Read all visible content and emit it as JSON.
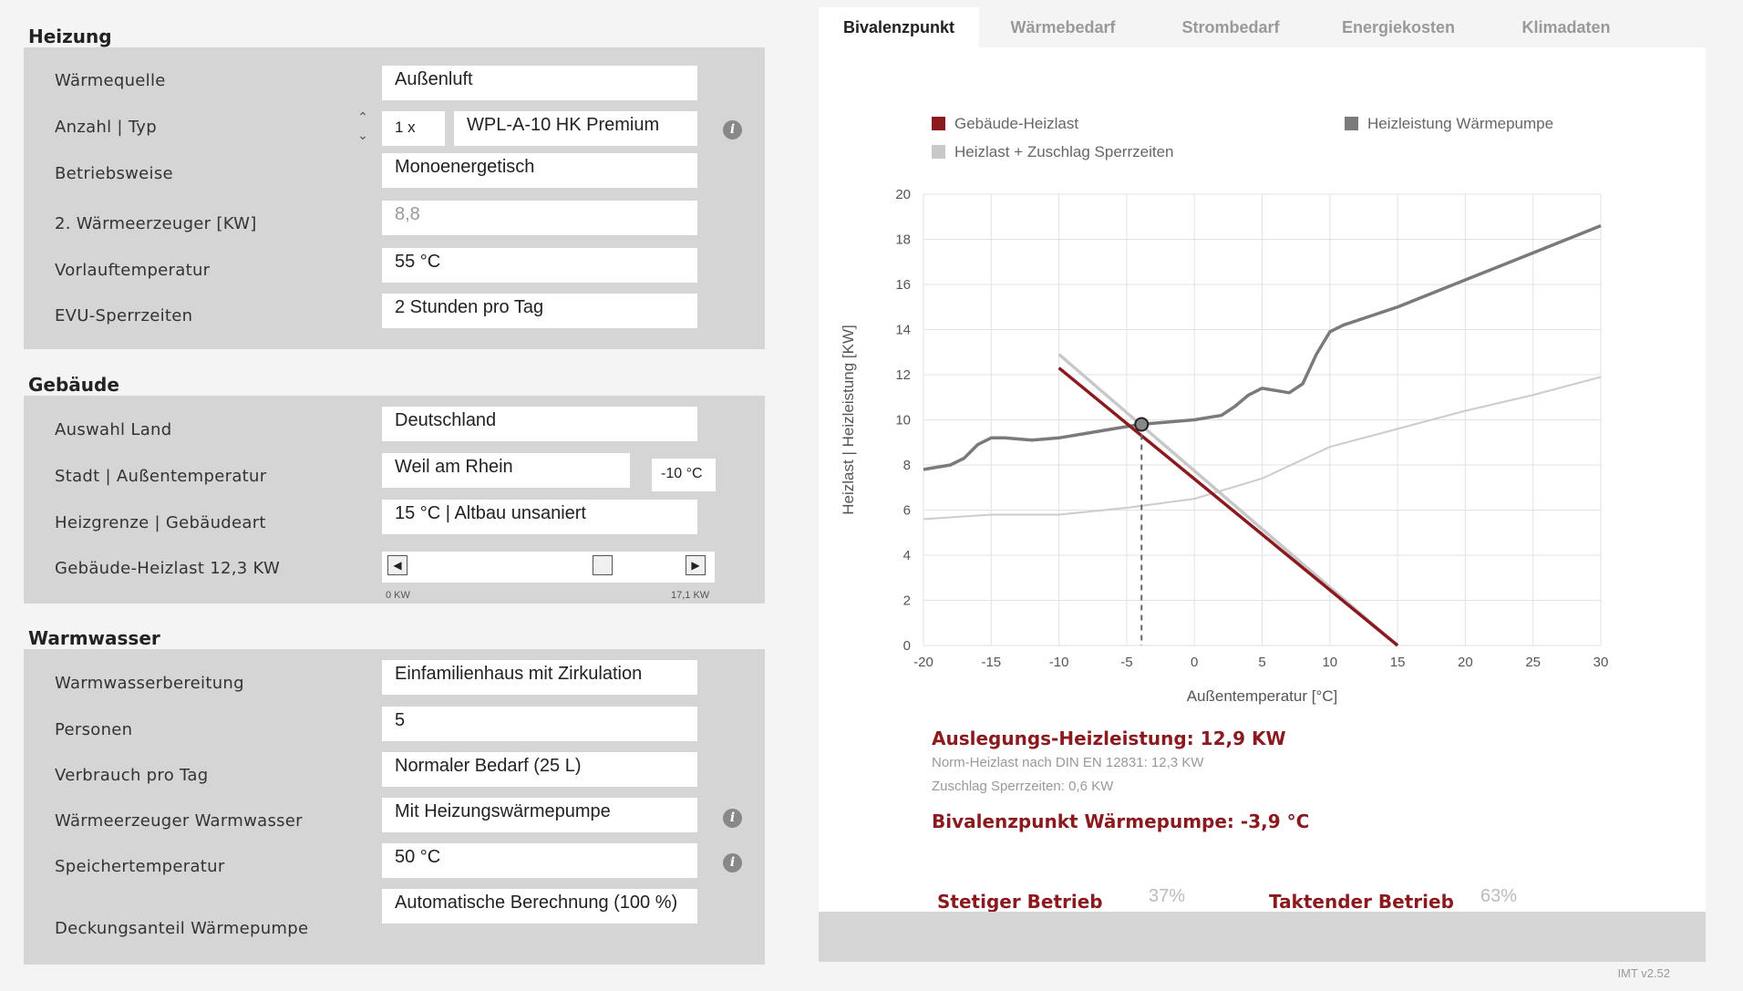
{
  "heizung": {
    "title": "Heizung",
    "rows": [
      {
        "label": "Wärmequelle",
        "value": "Außenluft"
      },
      {
        "label": "Anzahl | Typ",
        "count": "1 x",
        "value": "WPL-A-10 HK Premium"
      },
      {
        "label": "Betriebsweise",
        "value": "Monoenergetisch"
      },
      {
        "label": "2. Wärmeerzeuger [KW]",
        "value": "8,8"
      },
      {
        "label": "Vorlauftemperatur",
        "value": "55 °C"
      },
      {
        "label": "EVU-Sperrzeiten",
        "value": "2 Stunden pro Tag"
      }
    ]
  },
  "gebaeude": {
    "title": "Gebäude",
    "rows": [
      {
        "label": "Auswahl Land",
        "value": "Deutschland"
      },
      {
        "label": "Stadt | Außentemperatur",
        "value": "Weil am Rhein",
        "temp": "-10 °C"
      },
      {
        "label": "Heizgrenze | Gebäudeart",
        "value": "15 °C | Altbau unsaniert"
      },
      {
        "label": "Gebäude-Heizlast 12,3 KW",
        "slider_min": "0 KW",
        "slider_max": "17,1 KW",
        "slider_fraction": 0.72
      }
    ]
  },
  "warmwasser": {
    "title": "Warmwasser",
    "rows": [
      {
        "label": "Warmwasserbereitung",
        "value": "Einfamilienhaus mit Zirkulation"
      },
      {
        "label": "Personen",
        "value": "5"
      },
      {
        "label": "Verbrauch pro Tag",
        "value": "Normaler Bedarf (25 L)"
      },
      {
        "label": "Wärmeerzeuger Warmwasser",
        "value": "Mit Heizungswärmepumpe"
      },
      {
        "label": "Speichertemperatur",
        "value": "50 °C"
      },
      {
        "label": "Deckungsanteil Wärmepumpe",
        "value": "Automatische Berechnung (100 %)"
      }
    ]
  },
  "tabs": [
    "Bivalenzpunkt",
    "Wärmebedarf",
    "Strombedarf",
    "Energiekosten",
    "Klimadaten"
  ],
  "chart_data": {
    "type": "line",
    "xlabel": "Außentemperatur [°C]",
    "ylabel": "Heizlast | Heizleistung [KW]",
    "xlim": [
      -20,
      30
    ],
    "ylim": [
      0,
      20
    ],
    "xticks": [
      "-20",
      "-15",
      "-10",
      "-5",
      "0",
      "5",
      "10",
      "15",
      "20",
      "25",
      "30"
    ],
    "yticks": [
      "0",
      "2",
      "4",
      "6",
      "8",
      "10",
      "12",
      "14",
      "16",
      "18",
      "20"
    ],
    "grid": true,
    "legend_placement": "top",
    "series": [
      {
        "name": "Gebäude-Heizlast",
        "color": "#8b1a1f",
        "x": [
          -10,
          15
        ],
        "y": [
          12.3,
          0
        ]
      },
      {
        "name": "Heizleistung Wärmepumpe",
        "color": "#7a7a7a",
        "x": [
          -20,
          -18,
          -17,
          -16,
          -15,
          -14,
          -12,
          -10,
          -8,
          -6,
          -4,
          -2,
          0,
          2,
          3,
          4,
          5,
          6,
          7,
          8,
          9,
          10,
          11,
          12,
          15,
          20,
          25,
          30
        ],
        "y": [
          7.8,
          8.0,
          8.3,
          8.9,
          9.2,
          9.2,
          9.1,
          9.2,
          9.4,
          9.6,
          9.8,
          9.9,
          10.0,
          10.2,
          10.6,
          11.1,
          11.4,
          11.3,
          11.2,
          11.6,
          12.9,
          13.9,
          14.2,
          14.4,
          15.0,
          16.2,
          17.4,
          18.6
        ]
      },
      {
        "name": "Heizlast + Zuschlag Sperrzeiten",
        "color": "#c8c8c8",
        "x": [
          -10,
          15
        ],
        "y": [
          12.9,
          0
        ]
      },
      {
        "name": "",
        "color": "#cccccc",
        "x": [
          -20,
          -15,
          -10,
          -5,
          0,
          5,
          10,
          15,
          20,
          25,
          30
        ],
        "y": [
          5.6,
          5.8,
          5.8,
          6.1,
          6.5,
          7.4,
          8.8,
          9.6,
          10.4,
          11.1,
          11.9
        ]
      }
    ],
    "bivalence_point": {
      "x": -3.9,
      "y": 9.8
    }
  },
  "results": {
    "auslegung": "Auslegungs-Heizleistung: 12,9 KW",
    "norm": "Norm-Heizlast nach DIN EN 12831: 12,3 KW",
    "zuschlag": "Zuschlag Sperrzeiten: 0,6 KW",
    "bivalenz": "Bivalenzpunkt Wärmepumpe: -3,9 °C",
    "stetig_label": "Stetiger Betrieb",
    "stetig_value": "37%",
    "taktend_label": "Taktender Betrieb",
    "taktend_value": "63%"
  },
  "version": "IMT v2.52"
}
